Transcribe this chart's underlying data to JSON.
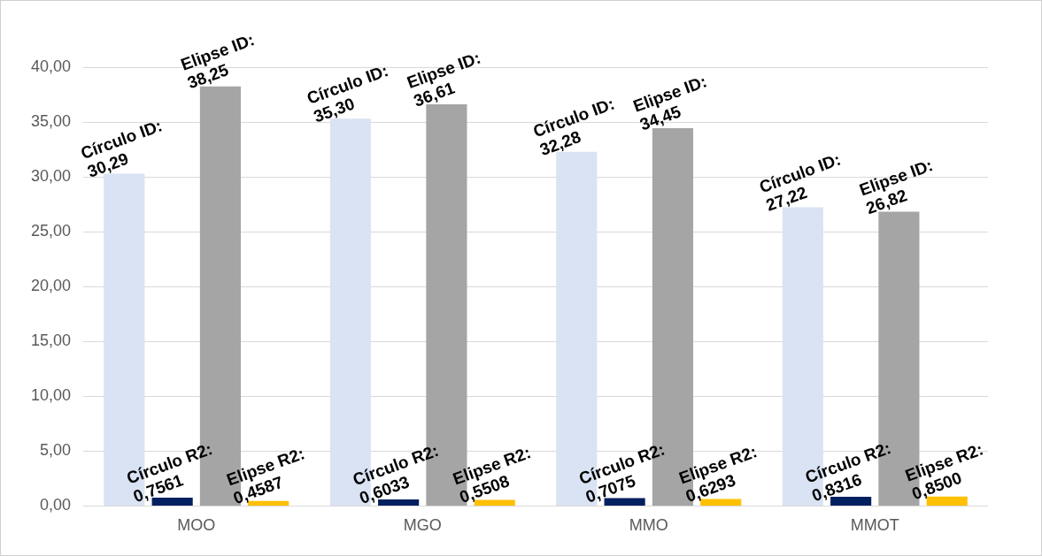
{
  "chart_data": {
    "type": "bar",
    "categories": [
      "MOO",
      "MGO",
      "MMO",
      "MMOT"
    ],
    "series": [
      {
        "color": "#dae3f3",
        "values": [
          30.29,
          35.3,
          32.28,
          27.22
        ],
        "value_labels": [
          "Círculo ID: 30,29",
          "Círculo ID: 35,30",
          "Círculo ID: 32,28",
          "Círculo ID: 27,22"
        ]
      },
      {
        "color": "#002060",
        "values": [
          0.7561,
          0.6033,
          0.7075,
          0.8316
        ],
        "value_labels": [
          "Círculo R2: 0,7561",
          "Círculo R2: 0,6033",
          "Círculo R2: 0,7075",
          "Círculo R2: 0,8316"
        ]
      },
      {
        "color": "#a5a5a5",
        "values": [
          38.25,
          36.61,
          34.45,
          26.82
        ],
        "value_labels": [
          "Elipse ID: 38,25",
          "Elipse ID: 36,61",
          "Elipse ID: 34,45",
          "Elipse ID: 26,82"
        ]
      },
      {
        "color": "#ffc000",
        "values": [
          0.4587,
          0.5508,
          0.6293,
          0.85
        ],
        "value_labels": [
          "Elipse R2: 0,4587",
          "Elipse R2: 0,5508",
          "Elipse R2: 0,6293",
          "Elipse R2: 0,8500"
        ]
      }
    ],
    "ylim": [
      0,
      40
    ],
    "yticks": [
      {
        "value": 0,
        "label": "0,00"
      },
      {
        "value": 5,
        "label": "5,00"
      },
      {
        "value": 10,
        "label": "10,00"
      },
      {
        "value": 15,
        "label": "15,00"
      },
      {
        "value": 20,
        "label": "20,00"
      },
      {
        "value": 25,
        "label": "25,00"
      },
      {
        "value": 30,
        "label": "30,00"
      },
      {
        "value": 35,
        "label": "35,00"
      },
      {
        "value": 40,
        "label": "40,00"
      }
    ],
    "grid": "y",
    "legend": false
  }
}
